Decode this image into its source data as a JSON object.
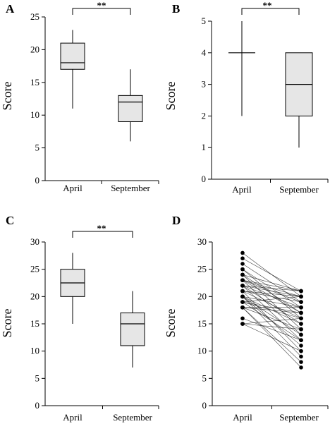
{
  "chart_data": [
    {
      "panel": "A",
      "type": "box",
      "categories": [
        "April",
        "September"
      ],
      "ylabel": "Score",
      "ylim": [
        0,
        25
      ],
      "yticks": [
        0,
        5,
        10,
        15,
        20,
        25
      ],
      "boxes": [
        {
          "category": "April",
          "min": 11,
          "q1": 17,
          "median": 18,
          "q3": 21,
          "max": 23
        },
        {
          "category": "September",
          "min": 6,
          "q1": 9,
          "median": 12,
          "q3": 13,
          "max": 17
        }
      ],
      "significance": "**"
    },
    {
      "panel": "B",
      "type": "box",
      "categories": [
        "April",
        "September"
      ],
      "ylabel": "Score",
      "ylim": [
        0,
        5
      ],
      "yticks": [
        0,
        1,
        2,
        3,
        4,
        5
      ],
      "boxes": [
        {
          "category": "April",
          "min": 2,
          "q1": 4,
          "median": 4,
          "q3": 4,
          "max": 5
        },
        {
          "category": "September",
          "min": 1,
          "q1": 2,
          "median": 3,
          "q3": 4,
          "max": 4
        }
      ],
      "significance": "**"
    },
    {
      "panel": "C",
      "type": "box",
      "categories": [
        "April",
        "September"
      ],
      "ylabel": "Score",
      "ylim": [
        0,
        30
      ],
      "yticks": [
        0,
        5,
        10,
        15,
        20,
        25,
        30
      ],
      "boxes": [
        {
          "category": "April",
          "min": 15,
          "q1": 20,
          "median": 22.5,
          "q3": 25,
          "max": 28
        },
        {
          "category": "September",
          "min": 7,
          "q1": 11,
          "median": 15,
          "q3": 17,
          "max": 21
        }
      ],
      "significance": "**"
    },
    {
      "panel": "D",
      "type": "line",
      "categories": [
        "April",
        "September"
      ],
      "ylabel": "Score",
      "ylim": [
        0,
        30
      ],
      "yticks": [
        0,
        5,
        10,
        15,
        20,
        25,
        30
      ],
      "pairs": [
        [
          28,
          20
        ],
        [
          27,
          21
        ],
        [
          26,
          19
        ],
        [
          25,
          18
        ],
        [
          25,
          16
        ],
        [
          24,
          21
        ],
        [
          24,
          17
        ],
        [
          24,
          14
        ],
        [
          23,
          21
        ],
        [
          23,
          20
        ],
        [
          23,
          19
        ],
        [
          23,
          17
        ],
        [
          23,
          13
        ],
        [
          22,
          21
        ],
        [
          22,
          20
        ],
        [
          22,
          18
        ],
        [
          22,
          15
        ],
        [
          22,
          12
        ],
        [
          21,
          20
        ],
        [
          21,
          19
        ],
        [
          21,
          16
        ],
        [
          21,
          10
        ],
        [
          20,
          18
        ],
        [
          20,
          15
        ],
        [
          20,
          13
        ],
        [
          20,
          11
        ],
        [
          20,
          9
        ],
        [
          19,
          20
        ],
        [
          19,
          17
        ],
        [
          19,
          16
        ],
        [
          19,
          12
        ],
        [
          18,
          18
        ],
        [
          18,
          17
        ],
        [
          18,
          14
        ],
        [
          18,
          8
        ],
        [
          18,
          7
        ],
        [
          16,
          12
        ],
        [
          15,
          14
        ],
        [
          15,
          16
        ],
        [
          15,
          10
        ]
      ]
    }
  ],
  "panels": {
    "A": {
      "label": "A",
      "ylabel": "Score",
      "cat1": "April",
      "cat2": "September",
      "stars": "**"
    },
    "B": {
      "label": "B",
      "ylabel": "Score",
      "cat1": "April",
      "cat2": "September",
      "stars": "**"
    },
    "C": {
      "label": "C",
      "ylabel": "Score",
      "cat1": "April",
      "cat2": "September",
      "stars": "**"
    },
    "D": {
      "label": "D",
      "ylabel": "Score",
      "cat1": "April",
      "cat2": "September"
    }
  }
}
